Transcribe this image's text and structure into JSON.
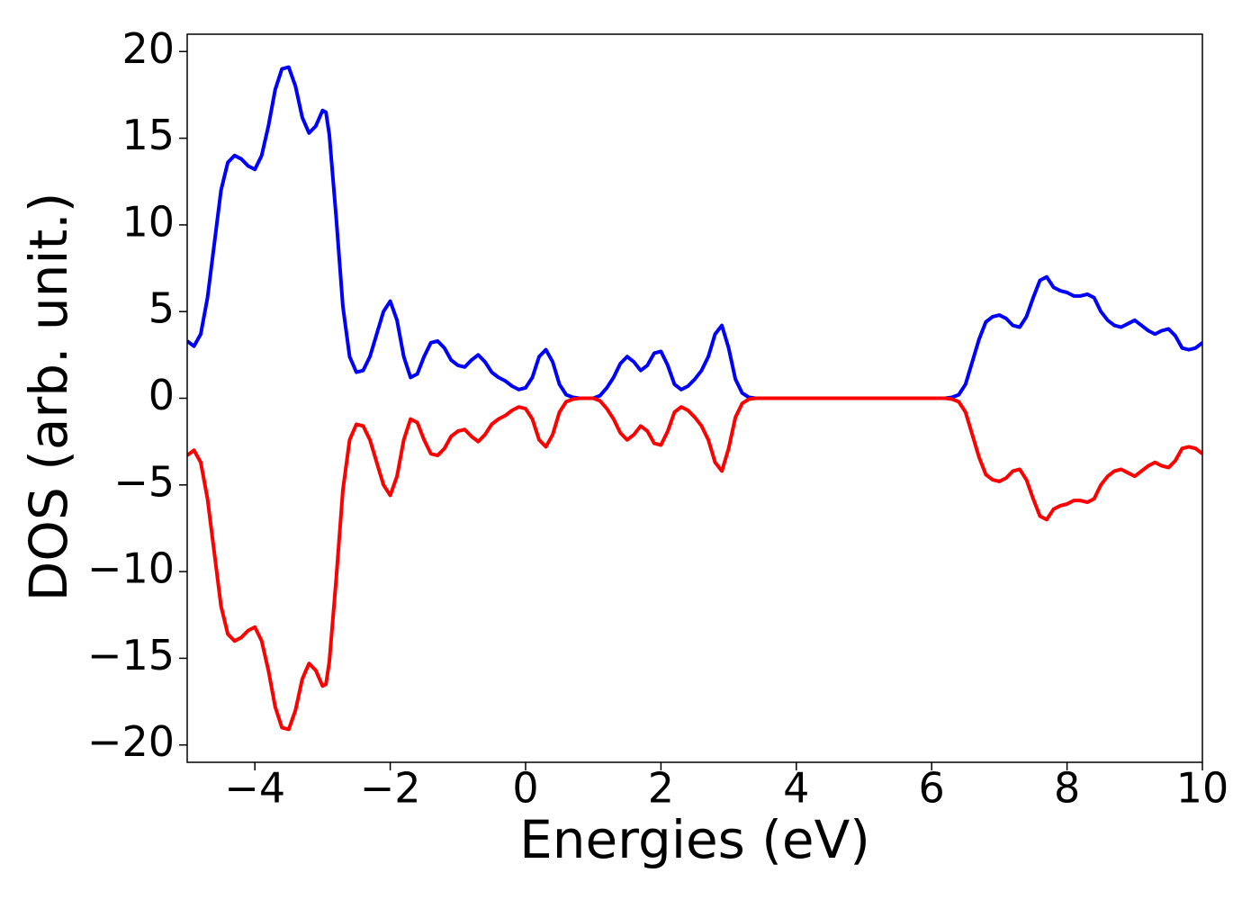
{
  "chart_data": {
    "type": "line",
    "xlabel": "Energies (eV)",
    "ylabel": "DOS (arb. unit.)",
    "x": [
      -5,
      -4.9,
      -4.8,
      -4.7,
      -4.6,
      -4.5,
      -4.4,
      -4.3,
      -4.2,
      -4.1,
      -4,
      -3.9,
      -3.8,
      -3.7,
      -3.6,
      -3.5,
      -3.4,
      -3.3,
      -3.2,
      -3.1,
      -3,
      -2.95,
      -2.9,
      -2.8,
      -2.7,
      -2.6,
      -2.5,
      -2.4,
      -2.3,
      -2.2,
      -2.1,
      -2,
      -1.9,
      -1.8,
      -1.7,
      -1.6,
      -1.5,
      -1.4,
      -1.3,
      -1.2,
      -1.1,
      -1,
      -0.9,
      -0.8,
      -0.7,
      -0.6,
      -0.5,
      -0.4,
      -0.3,
      -0.2,
      -0.1,
      0,
      0.1,
      0.2,
      0.3,
      0.4,
      0.5,
      0.6,
      0.7,
      0.8,
      1,
      1.1,
      1.2,
      1.3,
      1.4,
      1.5,
      1.6,
      1.7,
      1.8,
      1.9,
      2,
      2.1,
      2.2,
      2.3,
      2.4,
      2.5,
      2.6,
      2.7,
      2.8,
      2.9,
      3,
      3.1,
      3.2,
      3.3,
      3.4,
      6.2,
      6.3,
      6.4,
      6.5,
      6.6,
      6.7,
      6.8,
      6.9,
      7,
      7.1,
      7.2,
      7.3,
      7.4,
      7.5,
      7.6,
      7.7,
      7.8,
      7.9,
      8,
      8.1,
      8.2,
      8.3,
      8.4,
      8.5,
      8.6,
      8.7,
      8.8,
      8.9,
      9,
      9.1,
      9.2,
      9.3,
      9.4,
      9.5,
      9.6,
      9.7,
      9.8,
      9.9,
      10
    ],
    "series": [
      {
        "color": "#0000ff",
        "values": [
          3.3,
          3.0,
          3.7,
          5.8,
          8.9,
          12,
          13.6,
          14.0,
          13.8,
          13.4,
          13.2,
          14.0,
          15.7,
          17.8,
          19.0,
          19.1,
          18.0,
          16.2,
          15.3,
          15.7,
          16.6,
          16.5,
          15.2,
          10.5,
          5.3,
          2.4,
          1.5,
          1.6,
          2.4,
          3.7,
          5.0,
          5.6,
          4.5,
          2.4,
          1.2,
          1.4,
          2.4,
          3.2,
          3.3,
          2.9,
          2.2,
          1.9,
          1.8,
          2.2,
          2.5,
          2.1,
          1.5,
          1.2,
          1.0,
          0.7,
          0.5,
          0.6,
          1.2,
          2.4,
          2.8,
          2.1,
          0.8,
          0.2,
          0.05,
          0,
          0,
          0.15,
          0.6,
          1.2,
          2.0,
          2.4,
          2.1,
          1.6,
          1.9,
          2.6,
          2.7,
          1.9,
          0.8,
          0.5,
          0.7,
          1.1,
          1.6,
          2.4,
          3.7,
          4.2,
          2.9,
          1.1,
          0.3,
          0.05,
          0,
          0,
          0.05,
          0.2,
          0.8,
          2.1,
          3.4,
          4.4,
          4.7,
          4.8,
          4.6,
          4.2,
          4.1,
          4.7,
          5.8,
          6.8,
          7.0,
          6.4,
          6.2,
          6.1,
          5.9,
          5.9,
          6.0,
          5.8,
          5.0,
          4.5,
          4.2,
          4.1,
          4.3,
          4.5,
          4.2,
          3.9,
          3.7,
          3.9,
          4.0,
          3.6,
          2.9,
          2.8,
          2.9,
          3.2
        ]
      },
      {
        "color": "#ff0000",
        "values": [
          -3.3,
          -3.0,
          -3.7,
          -5.8,
          -8.9,
          -12,
          -13.6,
          -14.0,
          -13.8,
          -13.4,
          -13.2,
          -14.0,
          -15.7,
          -17.8,
          -19.0,
          -19.1,
          -18.0,
          -16.2,
          -15.3,
          -15.7,
          -16.6,
          -16.5,
          -15.2,
          -10.5,
          -5.3,
          -2.4,
          -1.5,
          -1.6,
          -2.4,
          -3.7,
          -5.0,
          -5.6,
          -4.5,
          -2.4,
          -1.2,
          -1.4,
          -2.4,
          -3.2,
          -3.3,
          -2.9,
          -2.2,
          -1.9,
          -1.8,
          -2.2,
          -2.5,
          -2.1,
          -1.5,
          -1.2,
          -1.0,
          -0.7,
          -0.5,
          -0.6,
          -1.2,
          -2.4,
          -2.8,
          -2.1,
          -0.8,
          -0.2,
          -0.05,
          0,
          0,
          -0.15,
          -0.6,
          -1.2,
          -2.0,
          -2.4,
          -2.1,
          -1.6,
          -1.9,
          -2.6,
          -2.7,
          -1.9,
          -0.8,
          -0.5,
          -0.7,
          -1.1,
          -1.6,
          -2.4,
          -3.7,
          -4.2,
          -2.9,
          -1.1,
          -0.3,
          -0.05,
          0,
          0,
          -0.05,
          -0.2,
          -0.8,
          -2.1,
          -3.4,
          -4.4,
          -4.7,
          -4.8,
          -4.6,
          -4.2,
          -4.1,
          -4.7,
          -5.8,
          -6.8,
          -7.0,
          -6.4,
          -6.2,
          -6.1,
          -5.9,
          -5.9,
          -6.0,
          -5.8,
          -5.0,
          -4.5,
          -4.2,
          -4.1,
          -4.3,
          -4.5,
          -4.2,
          -3.9,
          -3.7,
          -3.9,
          -4.0,
          -3.6,
          -2.9,
          -2.8,
          -2.9,
          -3.2
        ]
      }
    ],
    "xlim": [
      -5,
      10
    ],
    "xticks": [
      {
        "value": -4,
        "label": "−4"
      },
      {
        "value": -2,
        "label": "−2"
      },
      0,
      2,
      4,
      6,
      8,
      10
    ],
    "ylim": [
      -21,
      21
    ],
    "yticks": [
      {
        "value": -20,
        "label": "−20"
      },
      {
        "value": -15,
        "label": "−15"
      },
      {
        "value": -10,
        "label": "−10"
      },
      {
        "value": -5,
        "label": "−5"
      },
      0,
      5,
      10,
      15,
      20
    ]
  }
}
